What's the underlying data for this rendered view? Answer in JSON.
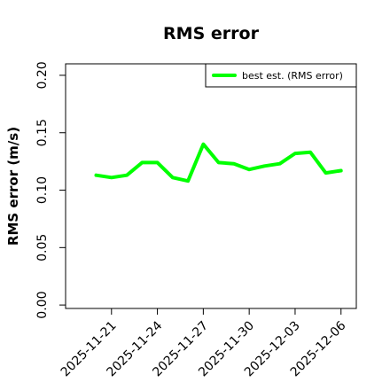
{
  "chart_data": {
    "type": "line",
    "title": "RMS error",
    "xlabel": "",
    "ylabel": "RMS error (m/s)",
    "x": [
      "2025-11-20",
      "2025-11-21",
      "2025-11-22",
      "2025-11-23",
      "2025-11-24",
      "2025-11-25",
      "2025-11-26",
      "2025-11-27",
      "2025-11-28",
      "2025-11-29",
      "2025-11-30",
      "2025-12-01",
      "2025-12-02",
      "2025-12-03",
      "2025-12-04",
      "2025-12-05",
      "2025-12-06"
    ],
    "series": [
      {
        "name": "best est. (RMS error)",
        "color": "#00ff00",
        "values": [
          0.113,
          0.111,
          0.113,
          0.124,
          0.124,
          0.111,
          0.108,
          0.14,
          0.124,
          0.123,
          0.118,
          0.121,
          0.123,
          0.132,
          0.133,
          0.115,
          0.117
        ]
      }
    ],
    "xlim": [
      "2025-11-18",
      "2025-12-07"
    ],
    "ylim": [
      -0.003,
      0.21
    ],
    "yticks": [
      0.0,
      0.05,
      0.1,
      0.15,
      0.2
    ],
    "ytick_labels": [
      "0.00",
      "0.05",
      "0.10",
      "0.15",
      "0.20"
    ],
    "xticks": [
      "2025-11-21",
      "2025-11-24",
      "2025-11-27",
      "2025-11-30",
      "2025-12-03",
      "2025-12-06"
    ],
    "xtick_labels": [
      "2025-11-21",
      "2025-11-24",
      "2025-11-27",
      "2025-11-30",
      "2025-12-03",
      "2025-12-06"
    ],
    "xtick_colors": [
      "#000000",
      "#000000",
      "#1a7a1a",
      "#000000",
      "#000000",
      "#000000"
    ],
    "legend_position": "top-right",
    "grid": false
  }
}
